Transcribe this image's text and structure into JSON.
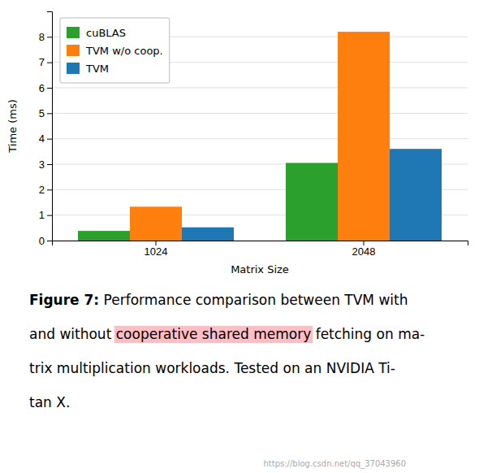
{
  "chart_data": {
    "type": "bar",
    "categories": [
      "1024",
      "2048"
    ],
    "series": [
      {
        "name": "cuBLAS",
        "color": "#2ca02c",
        "values": [
          0.38,
          3.05
        ]
      },
      {
        "name": "TVM w/o coop.",
        "color": "#ff7f0e",
        "values": [
          1.33,
          8.2
        ]
      },
      {
        "name": "TVM",
        "color": "#1f77b4",
        "values": [
          0.52,
          3.6
        ]
      }
    ],
    "xlabel": "Matrix Size",
    "ylabel": "Time (ms)",
    "ylim": [
      0,
      9.0
    ],
    "yticks": [
      0,
      1,
      2,
      3,
      4,
      5,
      6,
      7,
      8
    ],
    "grid": true,
    "legend": "upper left",
    "annotations": [
      "Figure 7:",
      "Performance comparison between TVM with",
      "and without",
      "cooperative shared memory",
      "fetching on ma-",
      "trix multiplication workloads. Tested on an NVIDIA Ti-",
      "tan X.",
      "https://blog.csdn.net/qq_37043960"
    ]
  }
}
